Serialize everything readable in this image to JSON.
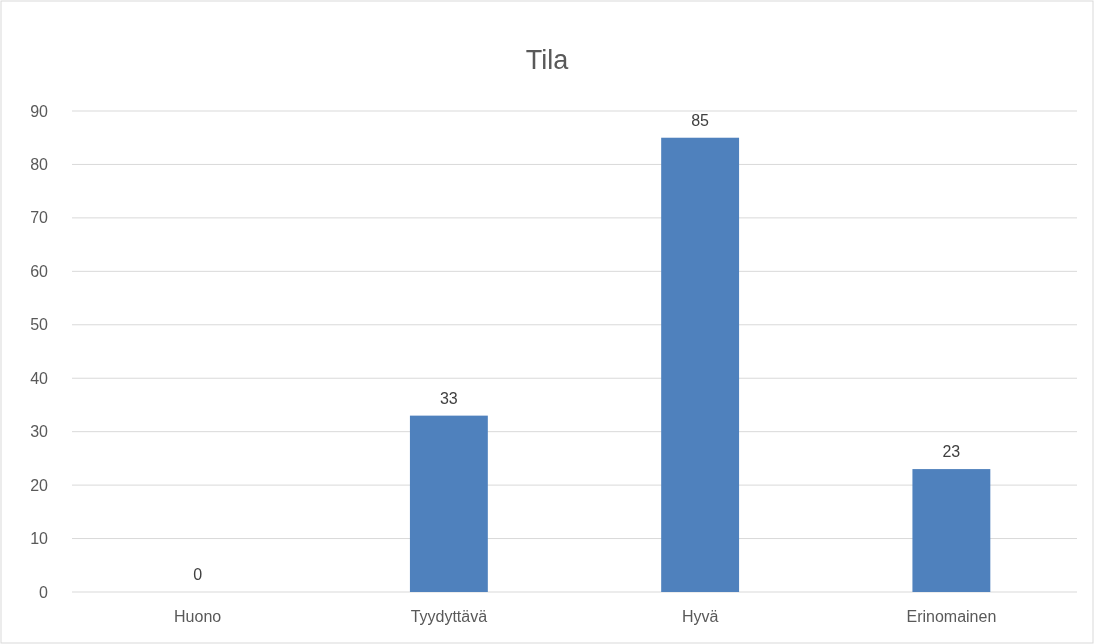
{
  "chart_data": {
    "type": "bar",
    "title": "Tila",
    "categories": [
      "Huono",
      "Tyydyttävä",
      "Hyvä",
      "Erinomainen"
    ],
    "values": [
      0,
      33,
      85,
      23
    ],
    "color": "#4f81bd",
    "ylim": [
      0,
      90
    ],
    "yticks": [
      0,
      10,
      20,
      30,
      40,
      50,
      60,
      70,
      80,
      90
    ],
    "grid": "y",
    "data_labels": true
  }
}
